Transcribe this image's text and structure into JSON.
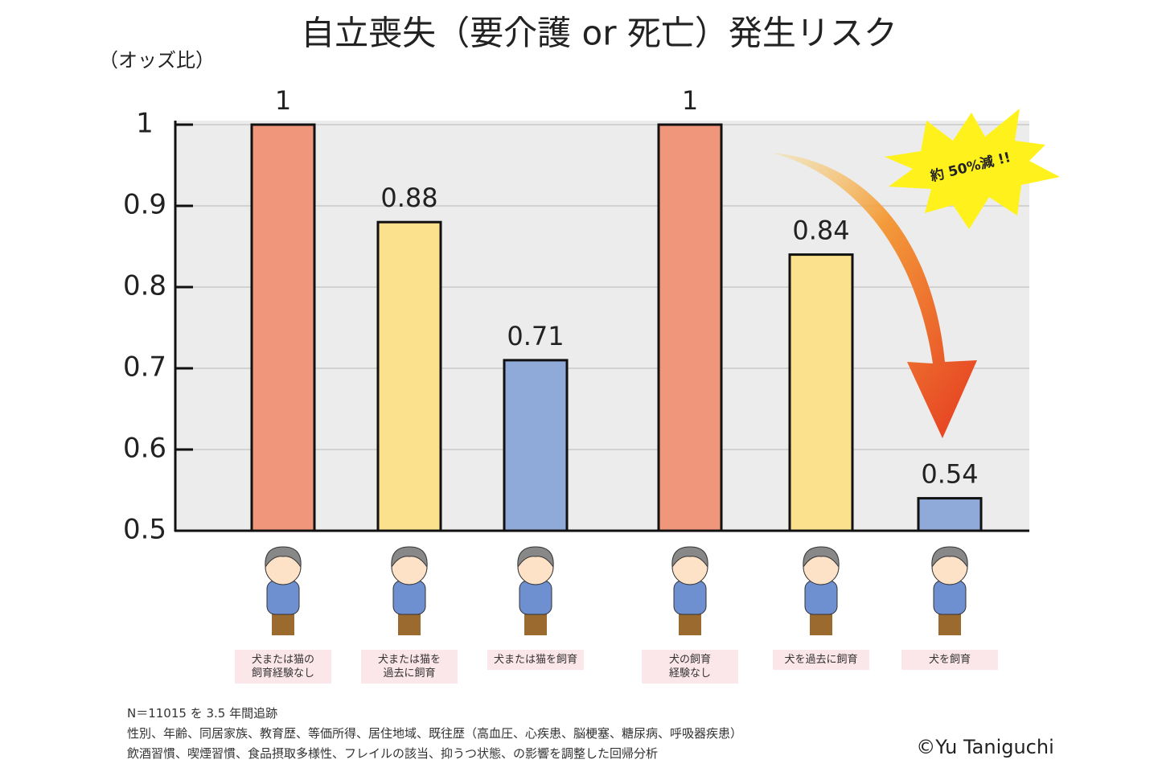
{
  "chart_data": {
    "type": "bar",
    "title": "自立喪失（要介護 or 死亡）発生リスク",
    "y_label": "（オッズ比）",
    "categories": [
      "犬または猫の\n飼育経験なし",
      "犬または猫を\n過去に飼育",
      "犬または猫を飼育",
      "犬の飼育\n経験なし",
      "犬を過去に飼育",
      "犬を飼育"
    ],
    "values": [
      1,
      0.88,
      0.71,
      1,
      0.84,
      0.54
    ],
    "colors": [
      "#f0977b",
      "#fbe08d",
      "#8fa9d9",
      "#f0977b",
      "#fbe08d",
      "#8fa9d9"
    ],
    "ylim": [
      0.5,
      1
    ],
    "yticks": [
      0.5,
      0.6,
      0.7,
      0.8,
      0.9,
      1
    ],
    "grid": true,
    "annotation": "約 50%減 !!",
    "notes": [
      "N＝11015 を 3.5 年間追跡",
      "性別、年齢、同居家族、教育歴、等価所得、居住地域、既往歴（高血圧、心疾患、脳梗塞、糖尿病、呼吸器疾患）",
      "飲酒習慣、喫煙習慣、食品摂取多様性、フレイルの該当、抑うつ状態、の影響を調整した回帰分析"
    ],
    "credit": "©Yu Taniguchi"
  }
}
